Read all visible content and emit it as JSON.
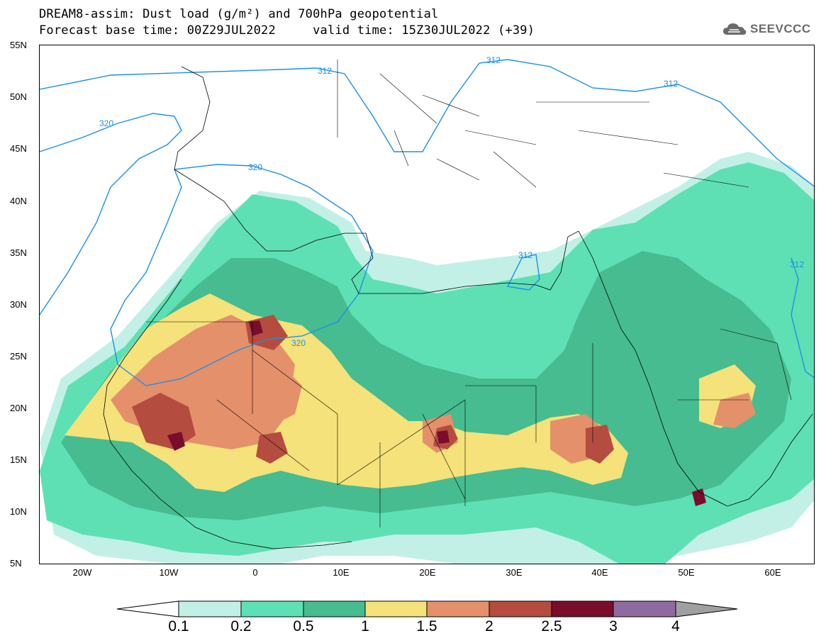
{
  "title": {
    "line1": "DREAM8-assim: Dust load (g/m²) and 700hPa geopotential",
    "line2": "Forecast base time: 00Z29JUL2022     valid time: 15Z30JUL2022 (+39)"
  },
  "logo": {
    "text": "SEEVCCC",
    "icon": "cloud-logo-icon"
  },
  "lat_labels": [
    "55N",
    "50N",
    "45N",
    "40N",
    "35N",
    "30N",
    "25N",
    "20N",
    "15N",
    "10N",
    "5N"
  ],
  "lon_labels": [
    "20W",
    "10W",
    "0",
    "10E",
    "20E",
    "30E",
    "40E",
    "50E",
    "60E"
  ],
  "contour_labels": [
    "312",
    "312",
    "312",
    "312",
    "312",
    "320",
    "320",
    "320"
  ],
  "colorbar": {
    "labels": [
      "0.1",
      "0.2",
      "0.5",
      "1",
      "1.5",
      "2",
      "2.5",
      "3",
      "4"
    ],
    "colors": [
      "#c2f0e6",
      "#5ee0b4",
      "#46bc90",
      "#f5e27a",
      "#e4906a",
      "#b54c40",
      "#7a0d2c",
      "#8f6aa0",
      "#a0a0a0"
    ]
  },
  "colors": {
    "contour": "#1e90e6",
    "level_01": "#c2f0e6",
    "level_02": "#5ee0b4",
    "level_05": "#46bc90",
    "level_1": "#f5e27a",
    "level_15": "#e4906a",
    "level_2": "#b54c40",
    "level_25": "#7a0d2c"
  }
}
